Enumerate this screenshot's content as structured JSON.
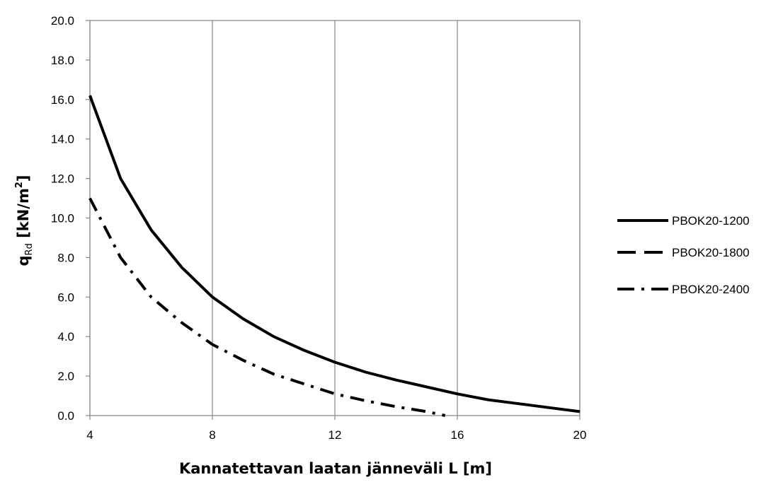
{
  "chart_data": {
    "type": "line",
    "title": "",
    "xlabel": "Kannatettavan laatan jänneväli L [m]",
    "ylabel": {
      "main": "q",
      "subscript": "Rd",
      "unit_prefix": " [kN/m",
      "unit_superscript": "2",
      "unit_suffix": "]"
    },
    "xlim": [
      4,
      20
    ],
    "ylim": [
      0,
      20
    ],
    "xticks": [
      4,
      8,
      12,
      16,
      20
    ],
    "yticks": [
      0,
      2,
      4,
      6,
      8,
      10,
      12,
      14,
      16,
      18,
      20
    ],
    "ytick_format": "one_decimal",
    "grid": "vertical",
    "legend_position": "right",
    "series": [
      {
        "name": "PBOK20-1200",
        "style": "solid",
        "color": "#000000",
        "x": [
          4,
          5,
          6,
          7,
          8,
          9,
          10,
          11,
          12,
          13,
          14,
          15,
          16,
          17,
          18,
          19,
          20
        ],
        "y": [
          16.2,
          12.0,
          9.4,
          7.5,
          6.0,
          4.9,
          4.0,
          3.3,
          2.7,
          2.2,
          1.8,
          1.45,
          1.1,
          0.8,
          0.6,
          0.4,
          0.2
        ]
      },
      {
        "name": "PBOK20-1800",
        "style": "dashed",
        "color": "#000000",
        "x": [],
        "y": []
      },
      {
        "name": "PBOK20-2400",
        "style": "dashdot",
        "color": "#000000",
        "x": [
          4,
          5,
          6,
          7,
          8,
          9,
          10,
          11,
          12,
          13,
          14,
          15,
          15.6
        ],
        "y": [
          11.0,
          8.0,
          6.0,
          4.7,
          3.6,
          2.8,
          2.1,
          1.6,
          1.1,
          0.75,
          0.45,
          0.2,
          0.0
        ]
      }
    ]
  }
}
